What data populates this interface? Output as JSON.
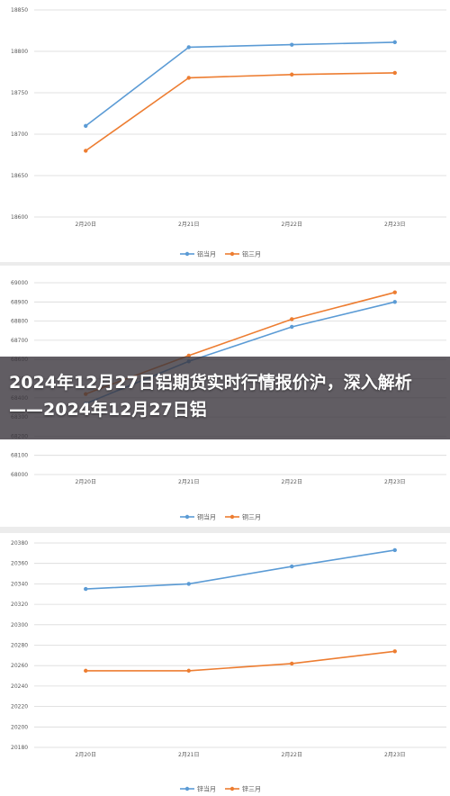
{
  "title": "2024年12月27日铝期货实时行情报价沪，深入解析——2024年12月27日铝",
  "chart_data": [
    {
      "type": "line",
      "categories": [
        "2月20日",
        "2月21日",
        "2月22日",
        "2月23日"
      ],
      "ylim": [
        18600,
        18850
      ],
      "yticks": [
        18600,
        18650,
        18700,
        18750,
        18800,
        18850
      ],
      "series": [
        {
          "name": "铝当月",
          "color": "#5b9bd5",
          "values": [
            18710,
            18805,
            18808,
            18811
          ]
        },
        {
          "name": "铝三月",
          "color": "#ed7d31",
          "values": [
            18680,
            18768,
            18772,
            18774
          ]
        }
      ],
      "grid": true,
      "legend": "bottom"
    },
    {
      "type": "line",
      "categories": [
        "2月20日",
        "2月21日",
        "2月22日",
        "2月23日"
      ],
      "ylim": [
        68000,
        69000
      ],
      "yticks": [
        68000,
        68100,
        68200,
        68300,
        68400,
        68500,
        68600,
        68700,
        68800,
        68900,
        69000
      ],
      "series": [
        {
          "name": "铜当月",
          "color": "#5b9bd5",
          "values": [
            68370,
            68590,
            68770,
            68900
          ]
        },
        {
          "name": "铜三月",
          "color": "#ed7d31",
          "values": [
            68420,
            68620,
            68810,
            68950
          ]
        }
      ],
      "grid": true,
      "legend": "bottom"
    },
    {
      "type": "line",
      "categories": [
        "2月20日",
        "2月21日",
        "2月22日",
        "2月23日"
      ],
      "ylim": [
        20180,
        20380
      ],
      "yticks": [
        20180,
        20200,
        20220,
        20240,
        20260,
        20280,
        20300,
        20320,
        20340,
        20360,
        20380
      ],
      "series": [
        {
          "name": "锌当月",
          "color": "#5b9bd5",
          "values": [
            20335,
            20340,
            20357,
            20373
          ]
        },
        {
          "name": "锌三月",
          "color": "#ed7d31",
          "values": [
            20255,
            20255,
            20262,
            20274
          ]
        }
      ],
      "grid": true,
      "legend": "bottom"
    }
  ]
}
